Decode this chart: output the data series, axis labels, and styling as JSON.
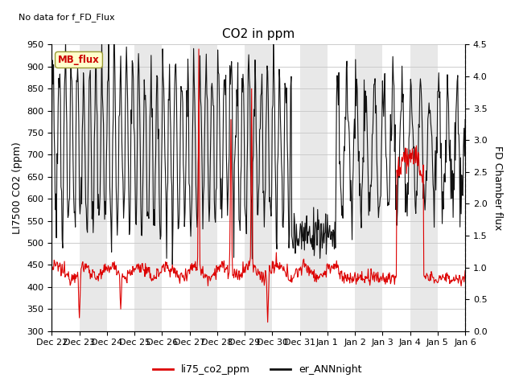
{
  "title": "CO2 in ppm",
  "top_left_text": "No data for f_FD_Flux",
  "ylabel_left": "LI7500 CO2 (ppm)",
  "ylabel_right": "FD Chamber flux",
  "ylim_left": [
    300,
    950
  ],
  "ylim_right": [
    0.0,
    4.5
  ],
  "yticks_left": [
    300,
    350,
    400,
    450,
    500,
    550,
    600,
    650,
    700,
    750,
    800,
    850,
    900,
    950
  ],
  "yticks_right": [
    0.0,
    0.5,
    1.0,
    1.5,
    2.0,
    2.5,
    3.0,
    3.5,
    4.0,
    4.5
  ],
  "legend_labels": [
    "li75_co2_ppm",
    "er_ANNnight"
  ],
  "legend_colors": [
    "#dd0000",
    "#111111"
  ],
  "mb_flux_label": "MB_flux",
  "mb_box_facecolor": "#ffffcc",
  "mb_box_edgecolor": "#999933",
  "mb_text_color": "#cc0000",
  "background_color": "#ffffff",
  "grid_color": "#cccccc",
  "band_color": "#e8e8e8",
  "red_line_color": "#dd0000",
  "black_line_color": "#111111",
  "title_fontsize": 11,
  "axis_label_fontsize": 9,
  "tick_fontsize": 8,
  "annotation_fontsize": 8
}
